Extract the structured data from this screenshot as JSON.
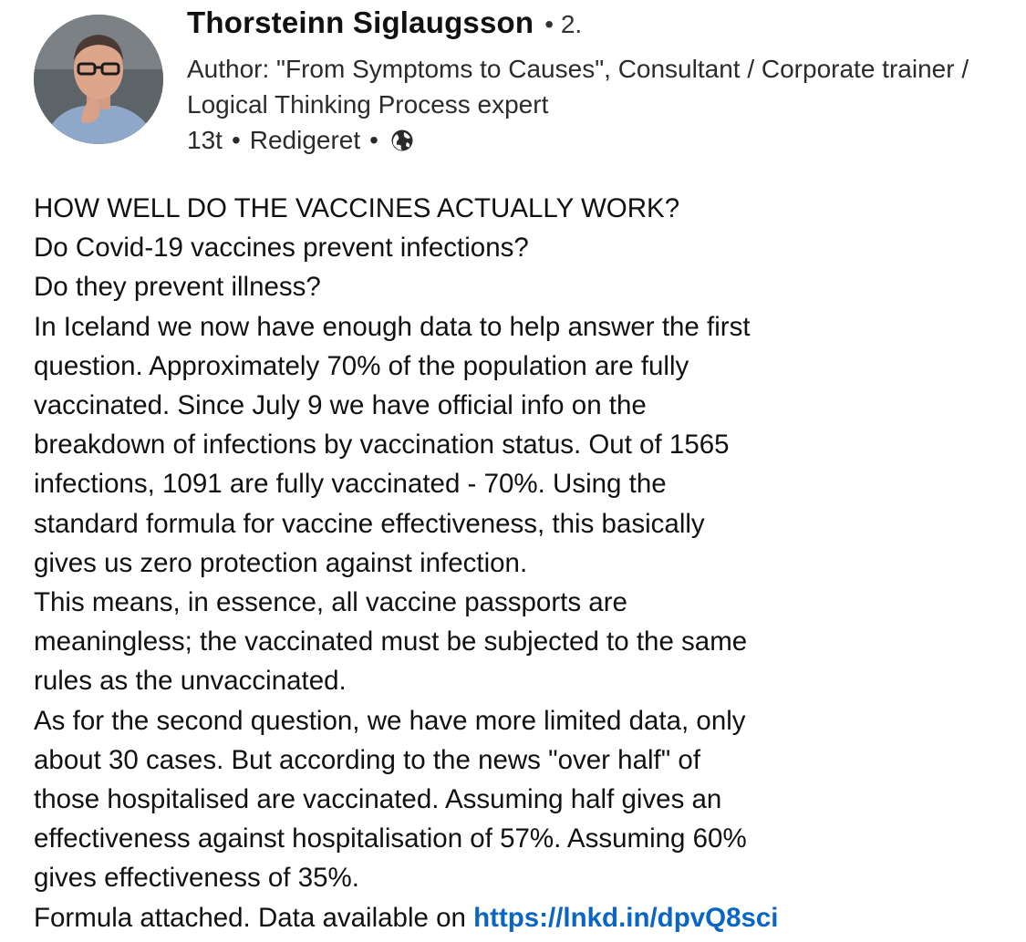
{
  "author": {
    "name": "Thorsteinn Siglaugsson",
    "connection_degree": "2.",
    "headline": "Author: \"From Symptoms to Causes\", Consultant / Corporate trainer / Logical Thinking Process expert",
    "time_ago": "13t",
    "edited_label": "Redigeret",
    "visibility_icon": "globe-icon"
  },
  "post": {
    "lines": [
      "HOW WELL DO THE VACCINES ACTUALLY WORK?",
      "Do Covid-19 vaccines prevent infections?",
      "Do they prevent illness?",
      "In Iceland we now have enough data to help answer the first",
      "question. Approximately 70% of the population are fully",
      "vaccinated. Since July 9 we have official info on the",
      "breakdown of infections by vaccination status. Out of 1565",
      "infections, 1091 are fully vaccinated - 70%. Using the",
      "standard formula for vaccine effectiveness, this basically",
      "gives us zero protection against infection.",
      "This means, in essence, all vaccine passports are",
      "meaningless; the vaccinated must be subjected to the same",
      "rules as the unvaccinated.",
      "As for the second question, we have more limited data, only",
      "about 30 cases. But according to the news \"over half\" of",
      "those hospitalised are vaccinated. Assuming half gives an",
      "effectiveness against hospitalisation of 57%. Assuming 60%",
      "gives effectiveness of 35%."
    ],
    "last_line_text": "Formula attached. Data available on",
    "link_text": "https://lnkd.in/dpvQ8sci"
  },
  "colors": {
    "link": "#0a66c2",
    "text": "#111111",
    "secondary_text": "#2b2b2b"
  }
}
